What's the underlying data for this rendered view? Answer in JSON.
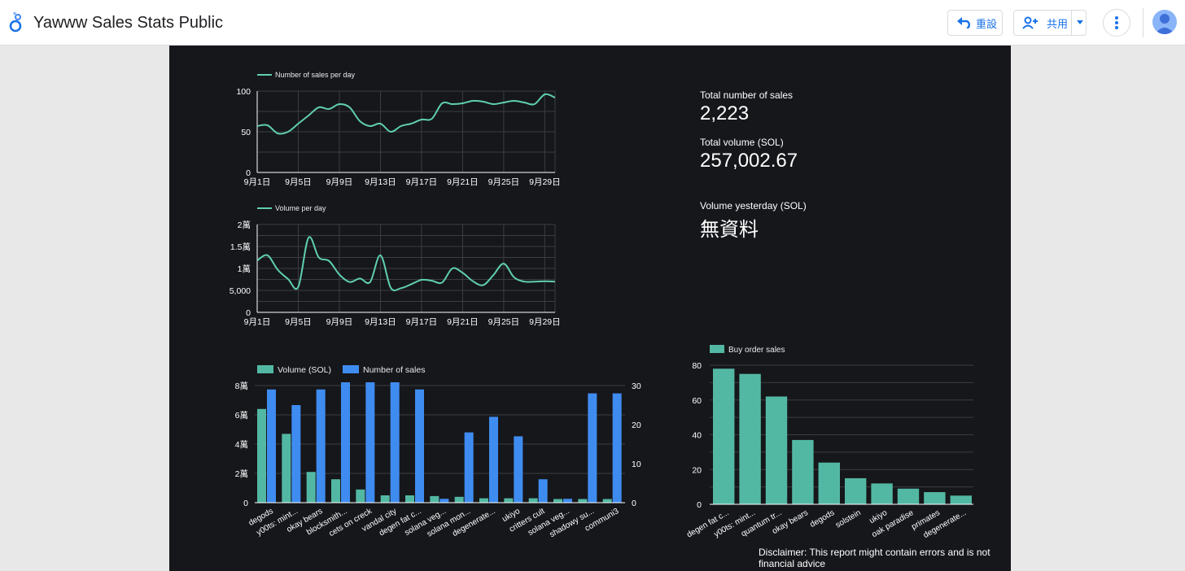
{
  "app": {
    "title": "Yawww Sales Stats Public",
    "reset_label": "重設",
    "share_label": "共用"
  },
  "colors": {
    "line": "#5fcfb0",
    "teal": "#53b8a3",
    "blue": "#3f8cf0",
    "canvas": "#16171b"
  },
  "icons": [
    "looker-studio-logo-icon",
    "undo-icon",
    "add-person-icon",
    "dropdown-caret-icon",
    "more-vert-icon",
    "avatar-icon"
  ],
  "kpis": {
    "total_sales_label": "Total number of sales",
    "total_sales_value": "2,223",
    "total_volume_label": "Total volume (SOL)",
    "total_volume_value": "257,002.67",
    "volume_yesterday_label": "Volume yesterday (SOL)",
    "volume_yesterday_value": "無資料"
  },
  "disclaimer": "Disclaimer: This report might contain errors and is not financial advice",
  "chart_data": [
    {
      "type": "line",
      "legend": [
        "Number of sales per day"
      ],
      "x_ticks": [
        "9月1日",
        "9月5日",
        "9月9日",
        "9月13日",
        "9月17日",
        "9月21日",
        "9月25日",
        "9月29日"
      ],
      "x": [
        1,
        2,
        3,
        4,
        5,
        6,
        7,
        8,
        9,
        10,
        11,
        12,
        13,
        14,
        15,
        16,
        17,
        18,
        19,
        20,
        21,
        22,
        23,
        24,
        25,
        26,
        27,
        28,
        29,
        30
      ],
      "y_ticks": [
        "0",
        "50",
        "100"
      ],
      "ylim": [
        0,
        100
      ],
      "series": [
        {
          "name": "Number of sales per day",
          "values": [
            57,
            58,
            48,
            50,
            60,
            70,
            80,
            78,
            84,
            80,
            63,
            57,
            60,
            50,
            57,
            60,
            65,
            66,
            85,
            84,
            85,
            88,
            87,
            84,
            86,
            88,
            86,
            84,
            96,
            92
          ]
        }
      ]
    },
    {
      "type": "line",
      "legend": [
        "Volume per day"
      ],
      "x_ticks": [
        "9月1日",
        "9月5日",
        "9月9日",
        "9月13日",
        "9月17日",
        "9月21日",
        "9月25日",
        "9月29日"
      ],
      "x": [
        1,
        2,
        3,
        4,
        5,
        6,
        7,
        8,
        9,
        10,
        11,
        12,
        13,
        14,
        15,
        16,
        17,
        18,
        19,
        20,
        21,
        22,
        23,
        24,
        25,
        26,
        27,
        28,
        29,
        30
      ],
      "y_ticks": [
        "0",
        "5,000",
        "1萬",
        "1.5萬",
        "2萬"
      ],
      "ylim": [
        0,
        20000
      ],
      "series": [
        {
          "name": "Volume per day",
          "values": [
            11800,
            13000,
            9700,
            7600,
            5800,
            17000,
            12500,
            11700,
            8600,
            6900,
            7700,
            6900,
            13000,
            5600,
            5500,
            6400,
            7400,
            7200,
            6800,
            10000,
            9000,
            7100,
            6200,
            8500,
            11100,
            8000,
            7000,
            7000,
            7100,
            7000
          ]
        }
      ]
    },
    {
      "type": "bar",
      "legend": [
        "Volume (SOL)",
        "Number of sales"
      ],
      "categories": [
        "degods",
        "y00ts: mint...",
        "okay bears",
        "blocksmith...",
        "cets on creck",
        "vandal city",
        "degen fat c...",
        "solana veg...",
        "solana mon...",
        "degenerate...",
        "ukiyo",
        "critters cult",
        "solana veg...",
        "shadowy su...",
        "communi3"
      ],
      "y_ticks_left": [
        "0",
        "2萬",
        "4萬",
        "6萬",
        "8萬"
      ],
      "y_ticks_right": [
        "0",
        "10",
        "20",
        "30"
      ],
      "ylim_left": [
        0,
        80000
      ],
      "ylim_right": [
        0,
        30
      ],
      "series": [
        {
          "name": "Volume (SOL)",
          "axis": "left",
          "values": [
            64000,
            47000,
            21000,
            16000,
            9000,
            5000,
            5000,
            4500,
            4000,
            3000,
            3000,
            3000,
            2500,
            2500,
            2500
          ]
        },
        {
          "name": "Number of sales",
          "axis": "right",
          "values": [
            29,
            25,
            29,
            31,
            31,
            31,
            29,
            1,
            18,
            22,
            17,
            6,
            1,
            28,
            28
          ]
        }
      ]
    },
    {
      "type": "bar",
      "legend": [
        "Buy order sales"
      ],
      "categories": [
        "degen fat c...",
        "y00ts: mint...",
        "quantum tr...",
        "okay bears",
        "degods",
        "solstein",
        "ukiyo",
        "oak paradise",
        "primates",
        "degenerate..."
      ],
      "y_ticks": [
        "0",
        "20",
        "40",
        "60",
        "80"
      ],
      "ylim": [
        0,
        80
      ],
      "series": [
        {
          "name": "Buy order sales",
          "values": [
            78,
            75,
            62,
            37,
            24,
            15,
            12,
            9,
            7,
            5
          ]
        }
      ]
    }
  ]
}
